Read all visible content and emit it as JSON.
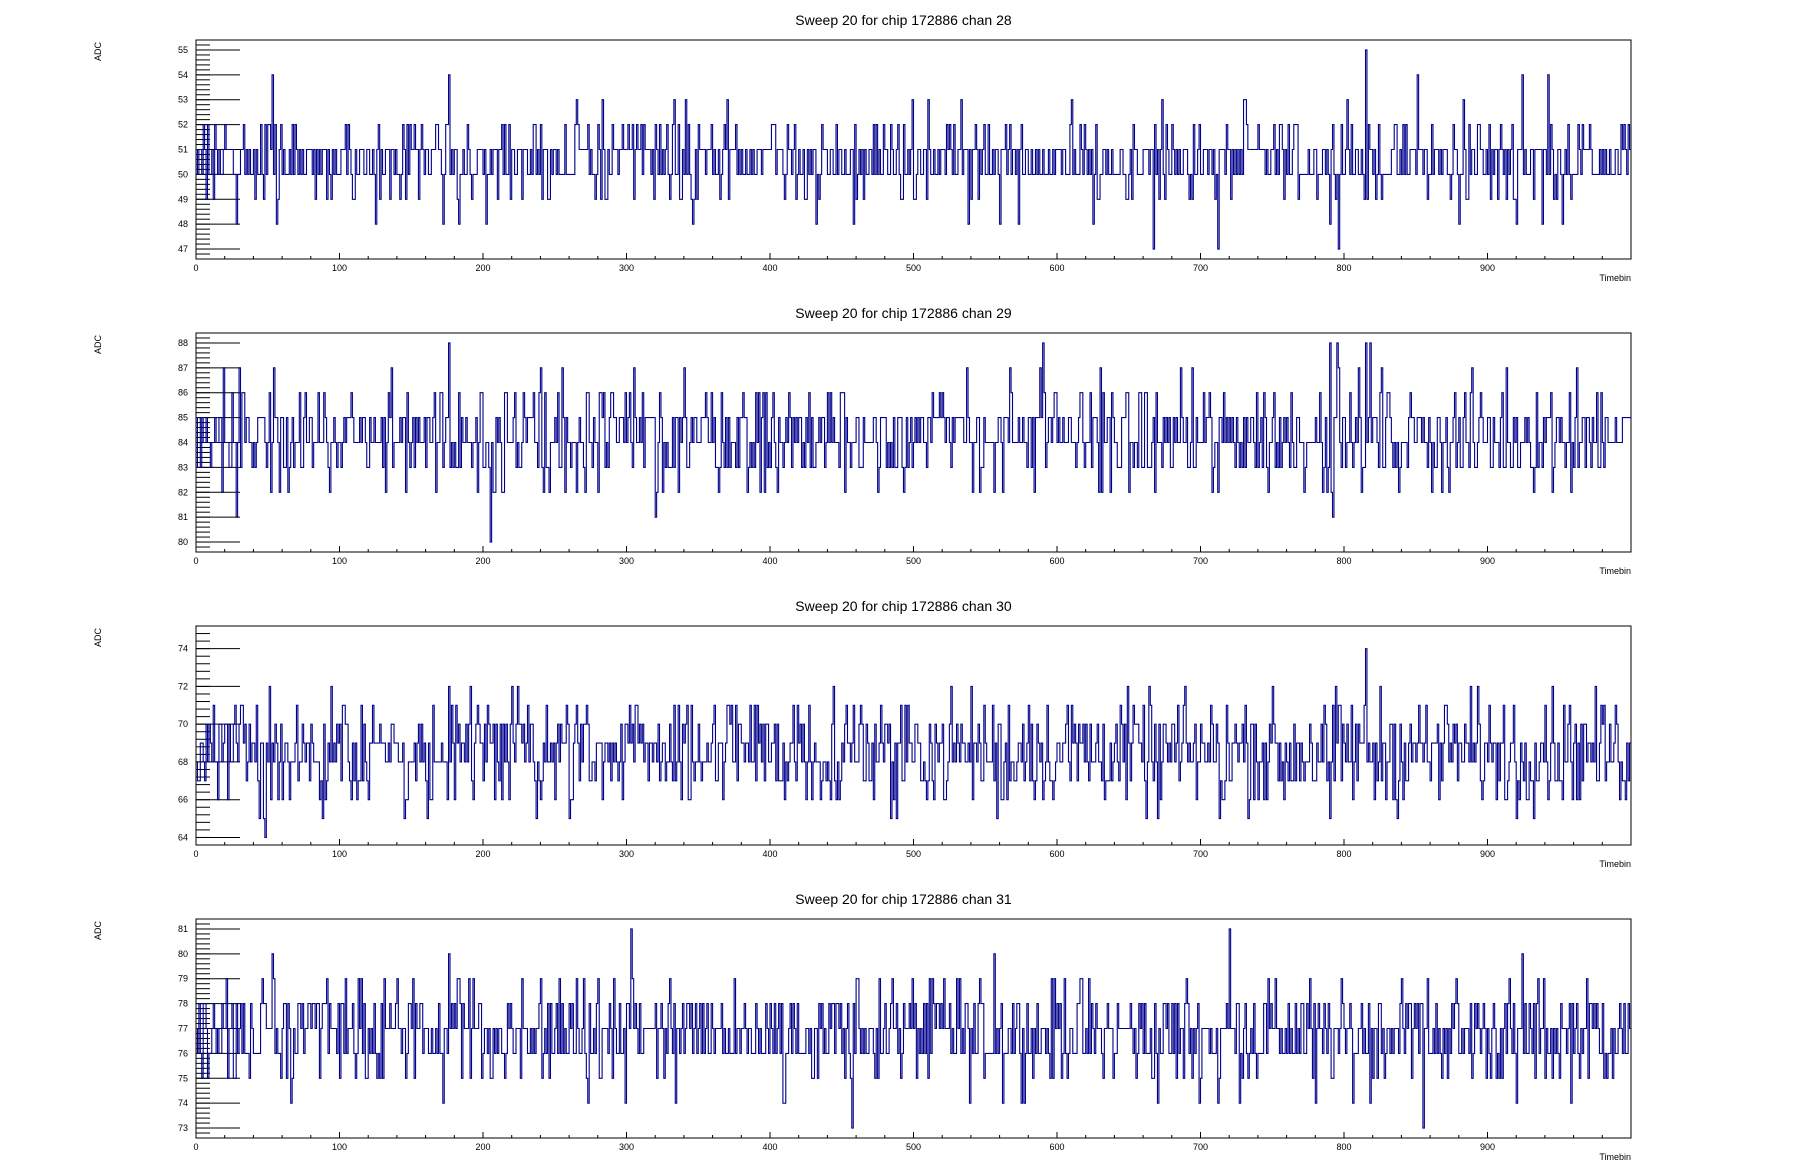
{
  "line_color": "#00008b",
  "chart_data": [
    {
      "type": "line",
      "title": "Sweep 20 for chip 172886 chan 28",
      "xlabel": "Timebin",
      "ylabel": "ADC",
      "xlim": [
        0,
        1000
      ],
      "ylim": [
        46.6,
        55.4
      ],
      "xticks": [
        0,
        100,
        200,
        300,
        400,
        500,
        600,
        700,
        800,
        900
      ],
      "yticks": [
        47,
        48,
        49,
        50,
        51,
        52,
        53,
        54,
        55
      ],
      "base": 50.6,
      "noise": 0.8,
      "min": 47,
      "max": 55,
      "seed": 28,
      "spikes": [
        [
          5,
          52
        ],
        [
          12,
          49
        ],
        [
          20,
          52
        ],
        [
          28,
          48
        ],
        [
          53,
          54
        ],
        [
          56,
          48
        ],
        [
          176,
          54
        ],
        [
          172,
          48
        ],
        [
          183,
          48
        ],
        [
          202,
          48
        ],
        [
          283,
          53
        ],
        [
          333,
          53
        ],
        [
          341,
          53
        ],
        [
          346,
          48
        ],
        [
          432,
          48
        ],
        [
          458,
          48
        ],
        [
          533,
          53
        ],
        [
          538,
          48
        ],
        [
          560,
          48
        ],
        [
          573,
          48
        ],
        [
          610,
          53
        ],
        [
          625,
          48
        ],
        [
          667,
          47
        ],
        [
          673,
          53
        ],
        [
          712,
          47
        ],
        [
          731,
          53
        ],
        [
          790,
          48
        ],
        [
          796,
          47
        ],
        [
          802,
          53
        ],
        [
          815,
          55
        ],
        [
          851,
          54
        ],
        [
          880,
          48
        ],
        [
          883,
          53
        ],
        [
          920,
          48
        ],
        [
          924,
          54
        ],
        [
          938,
          48
        ],
        [
          942,
          54
        ],
        [
          952,
          48
        ]
      ]
    },
    {
      "type": "line",
      "title": "Sweep 20 for chip 172886 chan 29",
      "xlabel": "Timebin",
      "ylabel": "ADC",
      "xlim": [
        0,
        1000
      ],
      "ylim": [
        79.6,
        88.4
      ],
      "xticks": [
        0,
        100,
        200,
        300,
        400,
        500,
        600,
        700,
        800,
        900
      ],
      "yticks": [
        80,
        81,
        82,
        83,
        84,
        85,
        86,
        87,
        88
      ],
      "base": 84.3,
      "noise": 1.0,
      "min": 80,
      "max": 88,
      "seed": 29,
      "spikes": [
        [
          28,
          81
        ],
        [
          30,
          87
        ],
        [
          52,
          82
        ],
        [
          54,
          87
        ],
        [
          146,
          82
        ],
        [
          176,
          88
        ],
        [
          205,
          80
        ],
        [
          208,
          82
        ],
        [
          213,
          82
        ],
        [
          255,
          87
        ],
        [
          280,
          82
        ],
        [
          305,
          87
        ],
        [
          320,
          81
        ],
        [
          340,
          87
        ],
        [
          393,
          82
        ],
        [
          452,
          82
        ],
        [
          493,
          82
        ],
        [
          541,
          82
        ],
        [
          537,
          87
        ],
        [
          584,
          82
        ],
        [
          590,
          88
        ],
        [
          630,
          87
        ],
        [
          650,
          82
        ],
        [
          668,
          82
        ],
        [
          712,
          82
        ],
        [
          747,
          82
        ],
        [
          792,
          81
        ],
        [
          790,
          88
        ],
        [
          795,
          88
        ],
        [
          815,
          88
        ],
        [
          818,
          88
        ],
        [
          838,
          82
        ],
        [
          958,
          82
        ],
        [
          962,
          87
        ]
      ]
    },
    {
      "type": "line",
      "title": "Sweep 20 for chip 172886 chan 30",
      "xlabel": "Timebin",
      "ylabel": "ADC",
      "xlim": [
        0,
        1000
      ],
      "ylim": [
        63.6,
        75.2
      ],
      "xticks": [
        0,
        100,
        200,
        300,
        400,
        500,
        600,
        700,
        800,
        900
      ],
      "yticks": [
        64,
        66,
        68,
        70,
        72,
        74
      ],
      "base": 68.6,
      "noise": 1.4,
      "min": 64,
      "max": 74,
      "seed": 30,
      "spikes": [
        [
          27,
          71
        ],
        [
          48,
          64
        ],
        [
          51,
          72
        ],
        [
          86,
          66
        ],
        [
          163,
          66
        ],
        [
          176,
          72
        ],
        [
          220,
          72
        ],
        [
          240,
          66
        ],
        [
          262,
          66
        ],
        [
          283,
          66
        ],
        [
          306,
          71
        ],
        [
          342,
          71
        ],
        [
          410,
          66
        ],
        [
          494,
          71
        ],
        [
          558,
          65
        ],
        [
          562,
          66
        ],
        [
          580,
          71
        ],
        [
          670,
          65
        ],
        [
          713,
          65
        ],
        [
          758,
          66
        ],
        [
          790,
          65
        ],
        [
          815,
          74
        ],
        [
          821,
          66
        ],
        [
          920,
          65
        ],
        [
          940,
          71
        ]
      ]
    },
    {
      "type": "line",
      "title": "Sweep 20 for chip 172886 chan 31",
      "xlabel": "Timebin",
      "ylabel": "ADC",
      "xlim": [
        0,
        1000
      ],
      "ylim": [
        72.6,
        81.4
      ],
      "xticks": [
        0,
        100,
        200,
        300,
        400,
        500,
        600,
        700,
        800,
        900
      ],
      "yticks": [
        73,
        74,
        75,
        76,
        77,
        78,
        79,
        80,
        81
      ],
      "base": 76.8,
      "noise": 1.0,
      "min": 73,
      "max": 81,
      "seed": 31,
      "spikes": [
        [
          53,
          80
        ],
        [
          115,
          79
        ],
        [
          172,
          74
        ],
        [
          176,
          80
        ],
        [
          190,
          79
        ],
        [
          303,
          81
        ],
        [
          299,
          74
        ],
        [
          330,
          79
        ],
        [
          334,
          74
        ],
        [
          375,
          79
        ],
        [
          410,
          74
        ],
        [
          457,
          73
        ],
        [
          460,
          79
        ],
        [
          485,
          79
        ],
        [
          530,
          79
        ],
        [
          556,
          80
        ],
        [
          562,
          74
        ],
        [
          605,
          79
        ],
        [
          670,
          74
        ],
        [
          712,
          74
        ],
        [
          720,
          81
        ],
        [
          780,
          74
        ],
        [
          818,
          74
        ],
        [
          840,
          79
        ],
        [
          855,
          73
        ],
        [
          858,
          79
        ],
        [
          920,
          74
        ],
        [
          924,
          80
        ]
      ]
    }
  ]
}
